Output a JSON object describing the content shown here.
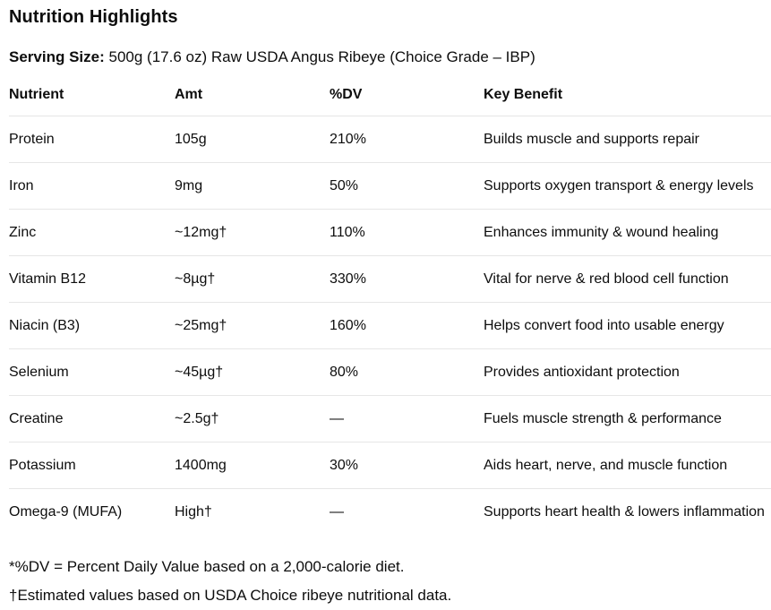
{
  "page": {
    "title": "Nutrition Highlights",
    "serving_size_label": "Serving Size:",
    "serving_size_value": "500g (17.6 oz) Raw USDA Angus Ribeye (Choice Grade – IBP)"
  },
  "table": {
    "columns": [
      "Nutrient",
      "Amt",
      "%DV",
      "Key Benefit"
    ],
    "rows": [
      {
        "nutrient": "Protein",
        "amt": "105g",
        "dv": "210%",
        "benefit": "Builds muscle and supports repair"
      },
      {
        "nutrient": "Iron",
        "amt": "9mg",
        "dv": "50%",
        "benefit": "Supports oxygen transport & energy levels"
      },
      {
        "nutrient": "Zinc",
        "amt": "~12mg†",
        "dv": "110%",
        "benefit": "Enhances immunity & wound healing"
      },
      {
        "nutrient": "Vitamin B12",
        "amt": "~8µg†",
        "dv": "330%",
        "benefit": "Vital for nerve & red blood cell function"
      },
      {
        "nutrient": "Niacin (B3)",
        "amt": "~25mg†",
        "dv": "160%",
        "benefit": "Helps convert food into usable energy"
      },
      {
        "nutrient": "Selenium",
        "amt": "~45µg†",
        "dv": "80%",
        "benefit": "Provides antioxidant protection"
      },
      {
        "nutrient": "Creatine",
        "amt": "~2.5g†",
        "dv": "—",
        "benefit": "Fuels muscle strength & performance"
      },
      {
        "nutrient": "Potassium",
        "amt": "1400mg",
        "dv": "30%",
        "benefit": "Aids heart, nerve, and muscle function"
      },
      {
        "nutrient": "Omega-9 (MUFA)",
        "amt": "High†",
        "dv": "—",
        "benefit": "Supports heart health & lowers inflammation"
      }
    ]
  },
  "footnotes": [
    "*%DV = Percent Daily Value based on a 2,000-calorie diet.",
    "†Estimated values based on USDA Choice ribeye nutritional data."
  ],
  "colors": {
    "text": "#0d0d0d",
    "border": "#e6e6e6",
    "background": "#ffffff"
  }
}
